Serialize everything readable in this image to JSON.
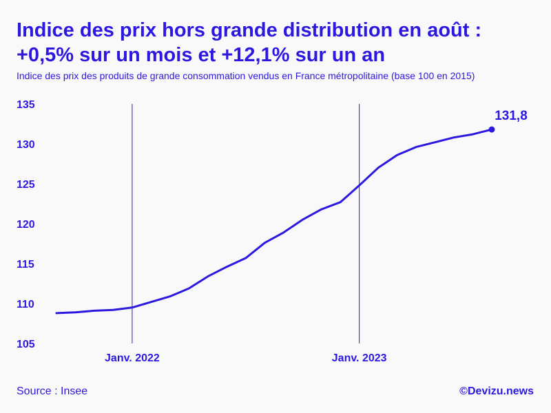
{
  "header": {
    "title_line1": "Indice des prix hors grande distribution en août :",
    "title_line2": "+0,5% sur un mois et +12,1% sur un an",
    "subtitle": "Indice des prix des produits de grande consommation vendus en France métropolitaine (base 100 en 2015)"
  },
  "footer": {
    "source": "Source : Insee",
    "credit": "©Devizu.news"
  },
  "colors": {
    "accent": "#2d18e0",
    "background": "#f9f9f9"
  },
  "chart_data": {
    "type": "line",
    "title": "Indice des prix hors grande distribution en août : +0,5% sur un mois et +12,1% sur un an",
    "subtitle": "Indice des prix des produits de grande consommation vendus en France métropolitaine (base 100 en 2015)",
    "xlabel": "",
    "ylabel": "",
    "x": [
      "2021-09",
      "2021-10",
      "2021-11",
      "2021-12",
      "2022-01",
      "2022-02",
      "2022-03",
      "2022-04",
      "2022-05",
      "2022-06",
      "2022-07",
      "2022-08",
      "2022-09",
      "2022-10",
      "2022-11",
      "2022-12",
      "2023-01",
      "2023-02",
      "2023-03",
      "2023-04",
      "2023-05",
      "2023-06",
      "2023-07",
      "2023-08"
    ],
    "series": [
      {
        "values": [
          108.8,
          108.9,
          109.1,
          109.2,
          109.5,
          110.2,
          110.9,
          111.9,
          113.4,
          114.6,
          115.7,
          117.6,
          118.9,
          120.5,
          121.8,
          122.7,
          124.8,
          127.0,
          128.6,
          129.6,
          130.2,
          130.8,
          131.2,
          131.8
        ]
      }
    ],
    "ylim": [
      105,
      135
    ],
    "yticks": [
      135,
      130,
      125,
      120,
      115,
      110,
      105
    ],
    "xticks": [
      {
        "x": "2022-01",
        "label": "Janv. 2022"
      },
      {
        "x": "2023-01",
        "label": "Janv. 2023"
      }
    ],
    "end_label": "131,8",
    "grid": "vertical lines at January ticks",
    "legend": "none"
  }
}
